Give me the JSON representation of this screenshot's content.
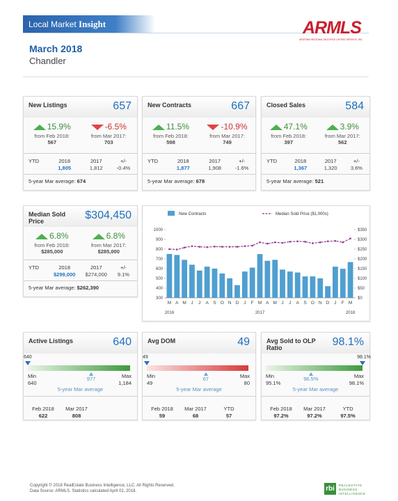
{
  "header": {
    "brand": "Local Market ",
    "brand_bold": "Insight",
    "logo": "ARMLS",
    "logo_sub": "ARIZONA REGIONAL MULTIPLE LISTING SERVICE, INC.",
    "period": "March 2018",
    "area": "Chandler"
  },
  "summary_cards": [
    {
      "title": "New Listings",
      "value": "657",
      "changes": [
        {
          "pct": "15.9%",
          "dir": "up",
          "from": "from Feb 2018:",
          "base": "567"
        },
        {
          "pct": "-6.5%",
          "dir": "down",
          "from": "from Mar 2017:",
          "base": "703"
        }
      ],
      "ytd": {
        "label": "YTD",
        "cur_year": "2018",
        "cur": "1,805",
        "prev_year": "2017",
        "prev": "1,812",
        "diff_label": "+/-",
        "diff": "-0.4%"
      },
      "avg_label": "5-year Mar average:",
      "avg": "674"
    },
    {
      "title": "New Contracts",
      "value": "667",
      "changes": [
        {
          "pct": "11.5%",
          "dir": "up",
          "from": "from Feb 2018:",
          "base": "598"
        },
        {
          "pct": "-10.9%",
          "dir": "down",
          "from": "from Mar 2017:",
          "base": "749"
        }
      ],
      "ytd": {
        "label": "YTD",
        "cur_year": "2018",
        "cur": "1,877",
        "prev_year": "2017",
        "prev": "1,908",
        "diff_label": "+/-",
        "diff": "-1.6%"
      },
      "avg_label": "5-year Mar average:",
      "avg": "678"
    },
    {
      "title": "Closed Sales",
      "value": "584",
      "changes": [
        {
          "pct": "47.1%",
          "dir": "up",
          "from": "from Feb 2018:",
          "base": "397"
        },
        {
          "pct": "3.9%",
          "dir": "up",
          "from": "from Mar 2017:",
          "base": "562"
        }
      ],
      "ytd": {
        "label": "YTD",
        "cur_year": "2018",
        "cur": "1,367",
        "prev_year": "2017",
        "prev": "1,320",
        "diff_label": "+/-",
        "diff": "3.6%"
      },
      "avg_label": "5-year Mar average:",
      "avg": "521"
    }
  ],
  "median_card": {
    "title": "Median Sold Price",
    "value": "$304,450",
    "changes": [
      {
        "pct": "6.8%",
        "dir": "up",
        "from": "from Feb 2018:",
        "base": "$285,000"
      },
      {
        "pct": "6.8%",
        "dir": "up",
        "from": "from Mar 2017:",
        "base": "$285,000"
      }
    ],
    "ytd": {
      "label": "YTD",
      "cur_year": "2018",
      "cur": "$299,000",
      "prev_year": "2017",
      "prev": "$274,000",
      "diff_label": "+/-",
      "diff": "9.1%"
    },
    "avg_label": "5-year Mar average:",
    "avg": "$262,390"
  },
  "chart_data": {
    "type": "bar",
    "categories": [
      "M",
      "A",
      "M",
      "J",
      "J",
      "A",
      "S",
      "O",
      "N",
      "D",
      "J",
      "F",
      "M",
      "A",
      "M",
      "J",
      "J",
      "A",
      "S",
      "O",
      "N",
      "D",
      "J",
      "F",
      "M"
    ],
    "x_group_labels": [
      "2016",
      "2017",
      "2018"
    ],
    "series": [
      {
        "name": "New Contracts",
        "color": "#4f9fd0",
        "values": [
          750,
          740,
          690,
          640,
          580,
          620,
          600,
          550,
          500,
          430,
          570,
          610,
          749,
          680,
          690,
          590,
          570,
          560,
          520,
          520,
          500,
          420,
          620,
          598,
          667
        ]
      },
      {
        "name": "Median Sold Price ($1,000s)",
        "color": "#8e3b8e",
        "type": "line",
        "axis": "y2",
        "values": [
          250,
          248,
          258,
          265,
          262,
          260,
          263,
          262,
          262,
          262,
          265,
          268,
          285,
          278,
          285,
          282,
          288,
          290,
          288,
          280,
          285,
          290,
          292,
          285,
          304.45
        ]
      }
    ],
    "ylim": [
      300,
      1000
    ],
    "yticks": [
      300,
      400,
      500,
      600,
      700,
      800,
      900,
      1000
    ],
    "y2lim": [
      0,
      350
    ],
    "y2ticks": [
      {
        "value": 0,
        "label": "$0"
      },
      {
        "value": 50,
        "label": "$50"
      },
      {
        "value": 100,
        "label": "$100"
      },
      {
        "value": 150,
        "label": "$150"
      },
      {
        "value": 200,
        "label": "$200"
      },
      {
        "value": 250,
        "label": "$250"
      },
      {
        "value": 300,
        "label": "$300"
      },
      {
        "value": 350,
        "label": "$350"
      }
    ],
    "legend": "top",
    "grid": false
  },
  "gauge_cards": [
    {
      "title": "Active Listings",
      "value": "640",
      "color": "green",
      "gauge": {
        "current": {
          "value": 640,
          "label": "640"
        },
        "min_label": "Min",
        "min": {
          "value": 640,
          "label": "640"
        },
        "avg": {
          "value": 977,
          "label": "977"
        },
        "max_label": "Max",
        "max": {
          "value": 1184,
          "label": "1,184"
        },
        "caption": "5-year Mar average"
      },
      "history": [
        {
          "label": "Feb 2018",
          "value": "622"
        },
        {
          "label": "Mar 2017",
          "value": "808"
        }
      ]
    },
    {
      "title": "Avg DOM",
      "value": "49",
      "color": "red",
      "gauge": {
        "current": {
          "value": 49,
          "label": "49"
        },
        "min_label": "Min",
        "min": {
          "value": 49,
          "label": "49"
        },
        "avg": {
          "value": 67,
          "label": "67"
        },
        "max_label": "Max",
        "max": {
          "value": 80,
          "label": "80"
        },
        "caption": "5-year Mar average"
      },
      "history": [
        {
          "label": "Feb 2018",
          "value": "59"
        },
        {
          "label": "Mar 2017",
          "value": "68"
        },
        {
          "label": "YTD",
          "value": "57"
        }
      ]
    },
    {
      "title": "Avg Sold to OLP Ratio",
      "value": "98.1%",
      "color": "green",
      "gauge": {
        "current": {
          "value": 98.1,
          "label": "98.1%"
        },
        "min_label": "Min",
        "min": {
          "value": 95.1,
          "label": "95.1%"
        },
        "avg": {
          "value": 96.5,
          "label": "96.5%"
        },
        "max_label": "Max",
        "max": {
          "value": 98.1,
          "label": "98.1%"
        },
        "caption": "5-year Mar average"
      },
      "history": [
        {
          "label": "Feb 2018",
          "value": "97.2%"
        },
        {
          "label": "Mar 2017",
          "value": "97.2%"
        },
        {
          "label": "YTD",
          "value": "97.5%"
        }
      ]
    }
  ],
  "footer": {
    "copyright": "Copyright © 2018 RealEstate Business Intelligence, LLC. All Rights Reserved.",
    "source": "Data Source: ARMLS. Statistics calculated April 02, 2018.",
    "logo": "rbi",
    "logo_text": "REALESTATE BUSINESS INTELLIGENCE"
  }
}
